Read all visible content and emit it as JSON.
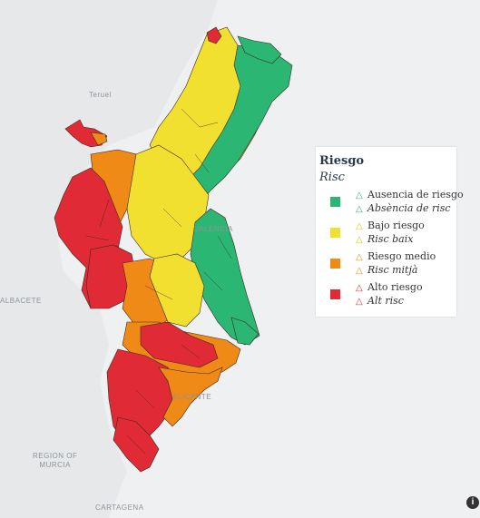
{
  "basemap": {
    "labels": {
      "teruel": "Teruel",
      "albacete": "ALBACETE",
      "valencia": "VALÈNCIA",
      "alicante": "ALICANTE",
      "region_murcia": "REGION OF\nMURCIA",
      "cartagena": "CARTAGENA"
    },
    "land_color": "#e6e8ea",
    "sea_color": "#eef0f2"
  },
  "legend": {
    "title": "Riesgo",
    "subtitle": "Risc",
    "items": [
      {
        "color": "#2bb673",
        "line1": "Ausencia de riesgo",
        "line2": "Absència de risc",
        "icon": "warning-triangle-icon"
      },
      {
        "color": "#f2e030",
        "line1": "Bajo riesgo",
        "line2": "Risc baix",
        "icon": "warning-triangle-icon"
      },
      {
        "color": "#f08a16",
        "line1": "Riesgo medio",
        "line2": "Risc mitjà",
        "icon": "warning-triangle-icon"
      },
      {
        "color": "#e02a35",
        "line1": "Alto riesgo",
        "line2": "Alt risc",
        "icon": "warning-triangle-icon"
      }
    ]
  },
  "info_button": {
    "symbol": "i"
  }
}
